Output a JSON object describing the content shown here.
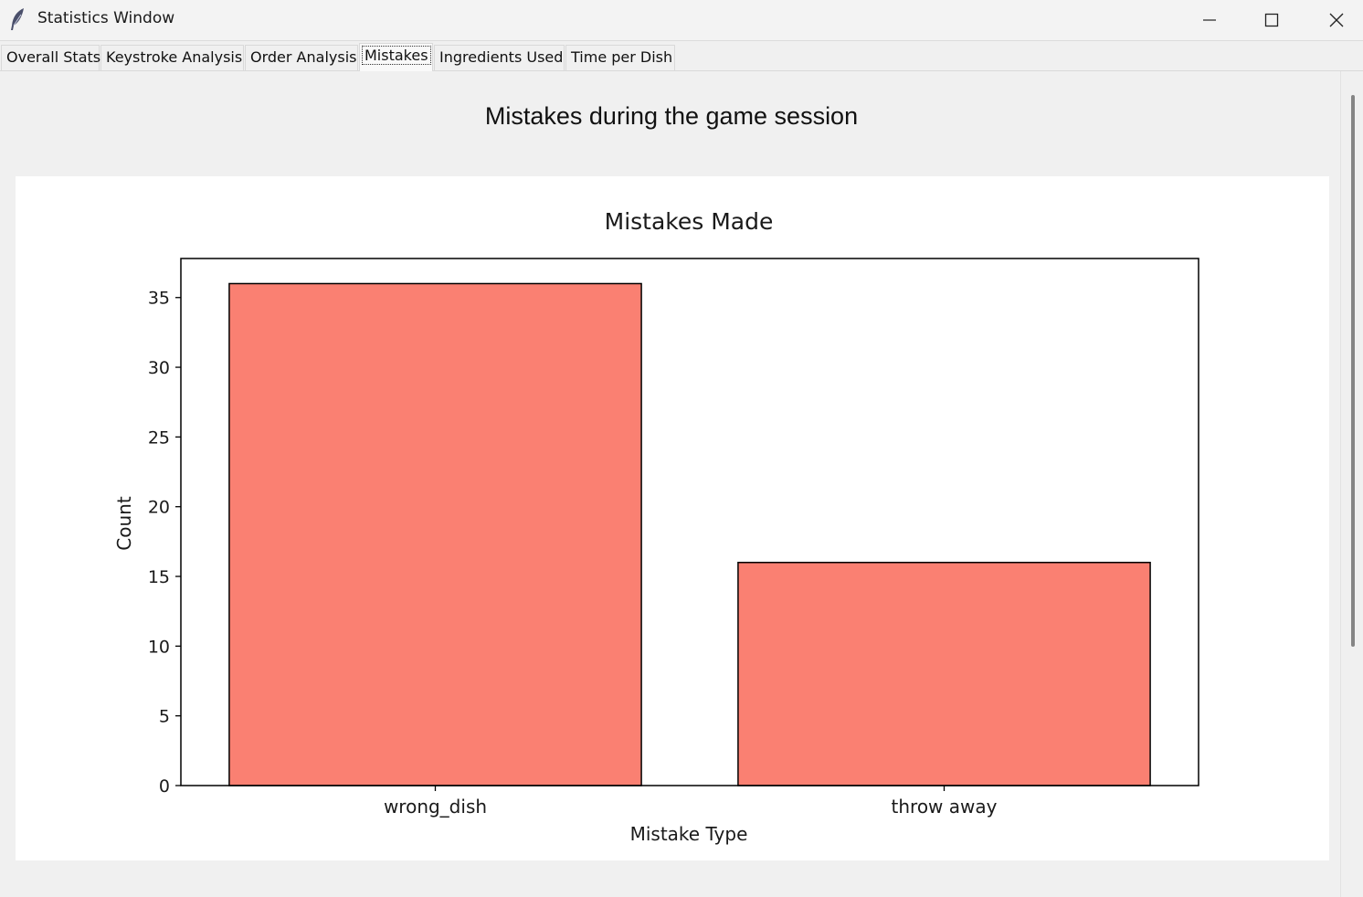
{
  "window": {
    "title": "Statistics Window",
    "icon": "feather-icon",
    "controls": [
      "minimize-icon",
      "maximize-icon",
      "close-icon"
    ]
  },
  "tabs": [
    {
      "label": "Overall Stats",
      "active": false
    },
    {
      "label": "Keystroke Analysis",
      "active": false
    },
    {
      "label": "Order Analysis",
      "active": false
    },
    {
      "label": "Mistakes",
      "active": true
    },
    {
      "label": "Ingredients Used",
      "active": false
    },
    {
      "label": "Time per Dish",
      "active": false
    }
  ],
  "page": {
    "heading": "Mistakes during the game session"
  },
  "chart_data": {
    "type": "bar",
    "title": "Mistakes Made",
    "xlabel": "Mistake Type",
    "ylabel": "Count",
    "categories": [
      "wrong_dish",
      "throw away"
    ],
    "values": [
      36,
      16
    ],
    "ylim": [
      0,
      37.8
    ],
    "yticks": [
      0,
      5,
      10,
      15,
      20,
      25,
      30,
      35
    ],
    "bar_color": "#fa8072",
    "edge_color": "#000000",
    "grid": false
  }
}
